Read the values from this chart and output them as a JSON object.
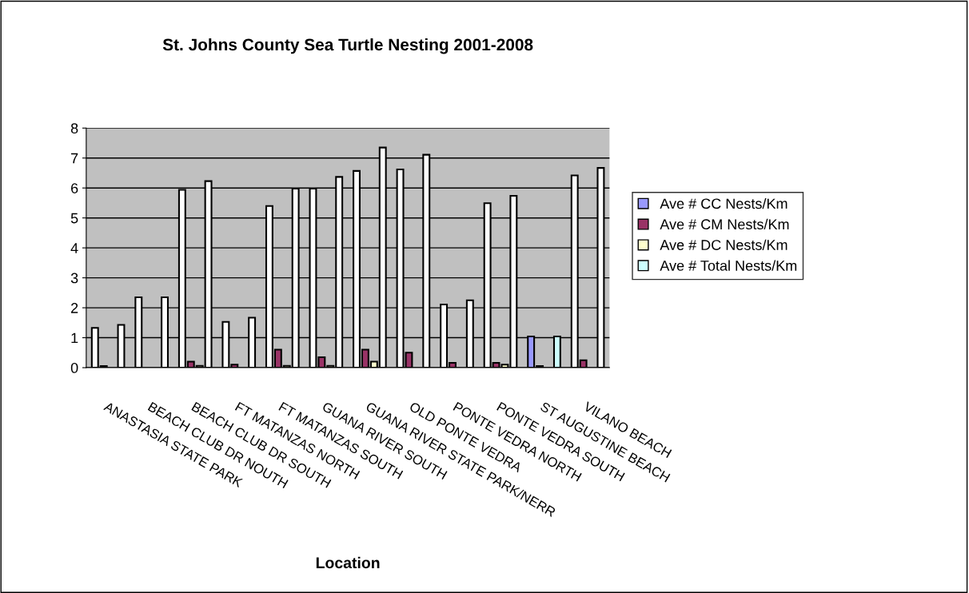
{
  "chart_data": {
    "type": "bar",
    "title": "St. Johns County Sea Turtle Nesting 2001-2008",
    "xlabel": "Location",
    "categories": [
      "ANASTASIA STATE PARK",
      "BEACH CLUB DR NOUTH",
      "BEACH CLUB DR SOUTH",
      "FT MATANZAS NORTH",
      "FT MATANZAS SOUTH",
      "GUANA RIVER SOUTH",
      "GUANA RIVER STATE PARK/NERR",
      "OLD PONTE VEDRA",
      "PONTE VEDRA NORTH",
      "PONTE VEDRA SOUTH",
      "ST AUGUSTINE BEACH",
      "VILANO BEACH"
    ],
    "series": [
      {
        "name": "Ave # CC Nests/Km",
        "color": "#9999ff",
        "colors": [
          "#ffffff",
          "#ffffff",
          "#ffffff",
          "#ffffff",
          "#ffffff",
          "#ffffff",
          "#ffffff",
          "#ffffff",
          "#ffffff",
          "#ffffff",
          "#9999ff",
          "#ffffff"
        ],
        "values": [
          1.33,
          2.35,
          5.94,
          1.53,
          5.4,
          5.98,
          6.57,
          6.62,
          2.11,
          5.49,
          1.04,
          6.42
        ]
      },
      {
        "name": "Ave # CM Nests/Km",
        "color": "#993366",
        "values": [
          0.05,
          0,
          0.2,
          0.1,
          0.6,
          0.35,
          0.6,
          0.5,
          0.16,
          0.16,
          0.05,
          0.25
        ]
      },
      {
        "name": "Ave # DC Nests/Km",
        "color": "#ffffcc",
        "values": [
          0,
          0,
          0.06,
          0,
          0.06,
          0.06,
          0.2,
          0,
          0,
          0.1,
          0,
          0
        ]
      },
      {
        "name": "Ave # Total Nests/Km",
        "color": "#ccffff",
        "colors": [
          "#ffffff",
          "#ffffff",
          "#ffffff",
          "#ffffff",
          "#ffffff",
          "#ffffff",
          "#ffffff",
          "#ffffff",
          "#ffffff",
          "#ffffff",
          "#ccffff",
          "#ffffff"
        ],
        "values": [
          1.43,
          2.35,
          6.23,
          1.67,
          5.98,
          6.37,
          7.35,
          7.11,
          2.25,
          5.74,
          1.04,
          6.67
        ]
      }
    ],
    "ylim": [
      0,
      8
    ],
    "yticks": [
      0,
      1,
      2,
      3,
      4,
      5,
      6,
      7,
      8
    ],
    "grid": "y",
    "legend": "right"
  }
}
